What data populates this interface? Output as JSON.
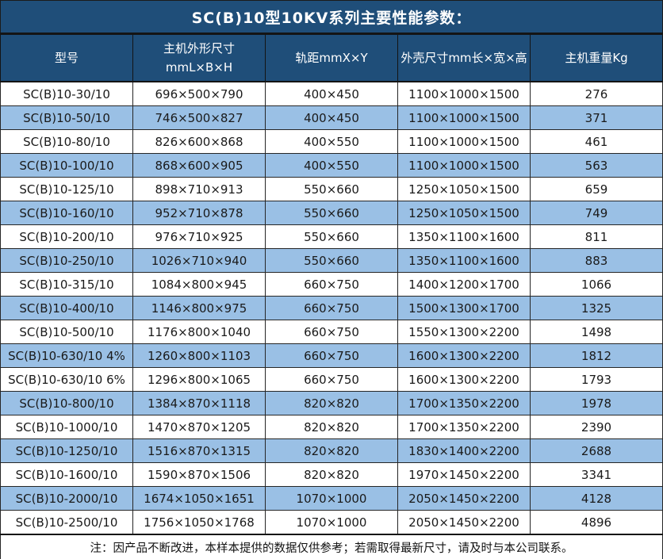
{
  "title": "SC(B)10型10KV系列主要性能参数：",
  "colors": {
    "header_bg": "#1F4E79",
    "header_text": "#FFFFFF",
    "row_bg": "#FFFFFF",
    "row_alt_bg": "#9AC0E5",
    "body_text": "#1A1A1A",
    "border": "#262626"
  },
  "table": {
    "columns": [
      {
        "line1": "型号",
        "line2": ""
      },
      {
        "line1": "主机外形尺寸",
        "line2": "mmL×B×H"
      },
      {
        "line1": "轨距mmX×Y",
        "line2": ""
      },
      {
        "line1": "外壳尺寸mm长×宽×高",
        "line2": ""
      },
      {
        "line1": "主机重量Kg",
        "line2": ""
      }
    ],
    "rows": [
      [
        "SC(B)10-30/10",
        "696×500×790",
        "400×450",
        "1100×1000×1500",
        "276"
      ],
      [
        "SC(B)10-50/10",
        "746×500×827",
        "400×450",
        "1100×1000×1500",
        "371"
      ],
      [
        "SC(B)10-80/10",
        "826×600×868",
        "400×550",
        "1100×1000×1500",
        "461"
      ],
      [
        "SC(B)10-100/10",
        "868×600×905",
        "400×550",
        "1100×1000×1500",
        "563"
      ],
      [
        "SC(B)10-125/10",
        "898×710×913",
        "550×660",
        "1250×1050×1500",
        "659"
      ],
      [
        "SC(B)10-160/10",
        "952×710×878",
        "550×660",
        "1250×1050×1500",
        "749"
      ],
      [
        "SC(B)10-200/10",
        "976×710×925",
        "550×660",
        "1350×1100×1600",
        "811"
      ],
      [
        "SC(B)10-250/10",
        "1026×710×940",
        "550×660",
        "1350×1100×1600",
        "883"
      ],
      [
        "SC(B)10-315/10",
        "1084×800×945",
        "660×750",
        "1400×1200×1700",
        "1066"
      ],
      [
        "SC(B)10-400/10",
        "1146×800×975",
        "660×750",
        "1500×1300×1700",
        "1325"
      ],
      [
        "SC(B)10-500/10",
        "1176×800×1040",
        "660×750",
        "1550×1300×2200",
        "1498"
      ],
      [
        "SC(B)10-630/10 4%",
        "1260×800×1103",
        "660×750",
        "1600×1300×2200",
        "1812"
      ],
      [
        "SC(B)10-630/10 6%",
        "1296×800×1065",
        "660×750",
        "1600×1300×2200",
        "1793"
      ],
      [
        "SC(B)10-800/10",
        "1384×870×1118",
        "820×820",
        "1700×1350×2200",
        "1978"
      ],
      [
        "SC(B)10-1000/10",
        "1470×870×1205",
        "820×820",
        "1700×1350×2200",
        "2390"
      ],
      [
        "SC(B)10-1250/10",
        "1516×870×1315",
        "820×820",
        "1830×1400×2200",
        "2688"
      ],
      [
        "SC(B)10-1600/10",
        "1590×870×1506",
        "820×820",
        "1970×1450×2200",
        "3341"
      ],
      [
        "SC(B)10-2000/10",
        "1674×1050×1651",
        "1070×1000",
        "2050×1450×2200",
        "4128"
      ],
      [
        "SC(B)10-2500/10",
        "1756×1050×1768",
        "1070×1000",
        "2050×1450×2200",
        "4896"
      ]
    ]
  },
  "footer": {
    "note": "注：因产品不断改进，本样本提供的数据仅供参考；若需取得最新尺寸，请及时与本公司联系。"
  }
}
